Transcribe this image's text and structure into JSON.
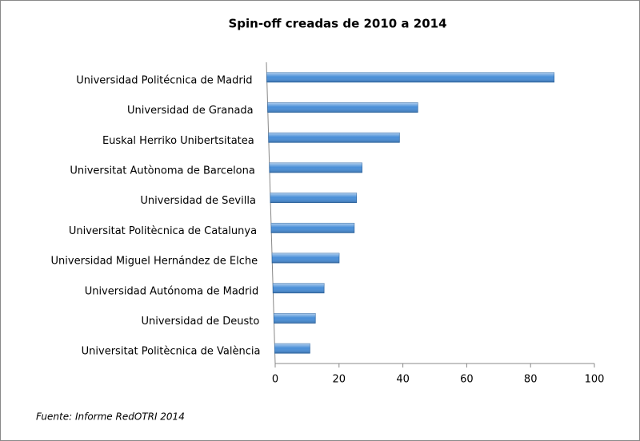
{
  "chart_data": {
    "type": "bar",
    "orientation": "horizontal",
    "title": "Spin-off creadas de 2010 a 2014",
    "categories": [
      "Universidad Politécnica de Madrid",
      "Universidad de Granada",
      "Euskal Herriko Unibertsitatea",
      "Universitat Autònoma de Barcelona",
      "Universidad de Sevilla",
      "Universitat Politècnica de Catalunya",
      "Universidad Miguel Hernández de Elche",
      "Universidad Autónoma de Madrid",
      "Universidad de Deusto",
      "Universitat Politècnica de València"
    ],
    "values": [
      90,
      47,
      41,
      29,
      27,
      26,
      21,
      16,
      13,
      11
    ],
    "color": "#4a8fd8",
    "xlim": [
      0,
      100
    ],
    "xticks": [
      0,
      20,
      40,
      60,
      80,
      100
    ],
    "source": "Fuente: Informe RedOTRI 2014"
  }
}
